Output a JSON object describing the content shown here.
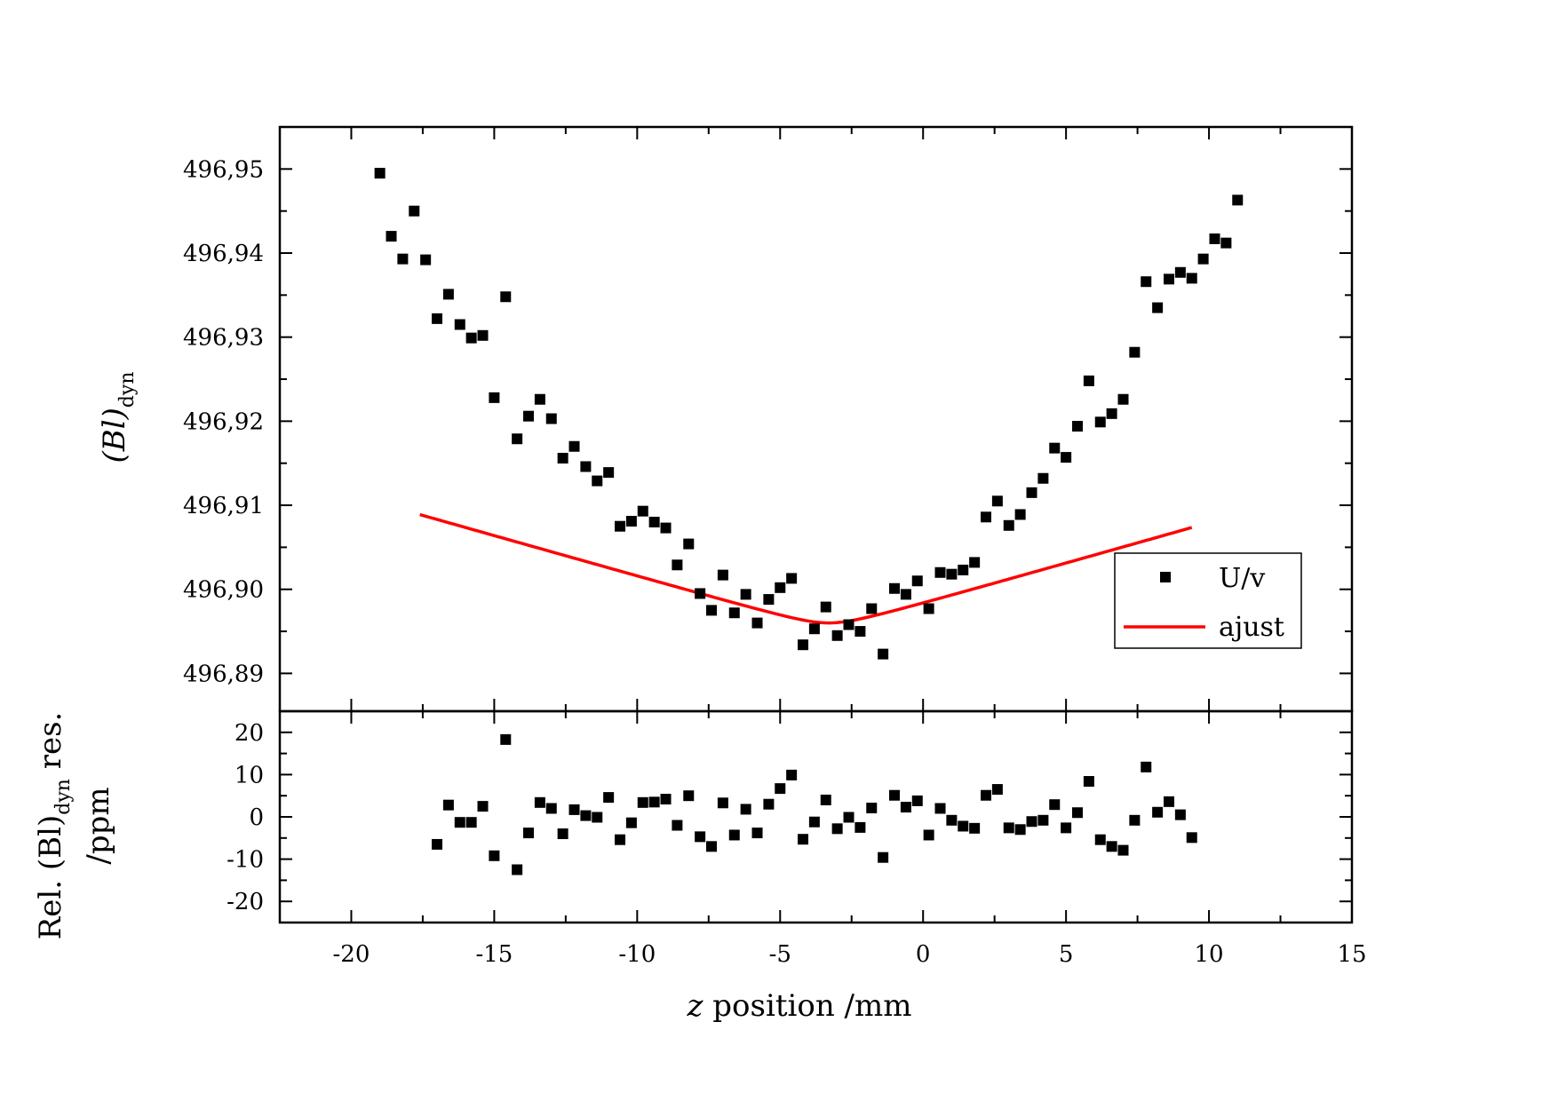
{
  "chart_data": [
    {
      "panel": "top",
      "type": "scatter",
      "ylim": [
        496.8855,
        496.955
      ],
      "xlim": [
        -22.5,
        15
      ],
      "yticks": [
        496.89,
        496.9,
        496.91,
        496.92,
        496.93,
        496.94,
        496.95
      ],
      "ytick_labels": [
        "496,89",
        "496,90",
        "496,91",
        "496,92",
        "496,93",
        "496,94",
        "496,95"
      ],
      "ylabel": {
        "main": "(Bl)",
        "sub": "dyn"
      },
      "legend": {
        "position": "lower-right",
        "entries": [
          {
            "label": "U/v",
            "kind": "marker"
          },
          {
            "label": "ajust",
            "kind": "line"
          }
        ]
      },
      "series": [
        {
          "name": "U/v",
          "kind": "scatter",
          "color": "#000000",
          "x": [
            -19.0,
            -18.6,
            -18.2,
            -17.8,
            -17.4,
            -17.0,
            -16.6,
            -16.2,
            -15.8,
            -15.4,
            -15.0,
            -14.6,
            -14.2,
            -13.8,
            -13.4,
            -13.0,
            -12.6,
            -12.2,
            -11.8,
            -11.4,
            -11.0,
            -10.6,
            -10.2,
            -9.8,
            -9.4,
            -9.0,
            -8.6,
            -8.2,
            -7.8,
            -7.4,
            -7.0,
            -6.6,
            -6.2,
            -5.8,
            -5.4,
            -5.0,
            -4.6,
            -4.2,
            -3.8,
            -3.4,
            -3.0,
            -2.6,
            -2.2,
            -1.8,
            -1.4,
            -1.0,
            -0.6,
            -0.2,
            0.2,
            0.6,
            1.0,
            1.4,
            1.8,
            2.2,
            2.6,
            3.0,
            3.4,
            3.8,
            4.2,
            4.6,
            5.0,
            5.4,
            5.8,
            6.2,
            6.6,
            7.0,
            7.4,
            7.8,
            8.2,
            8.6,
            9.0,
            9.4,
            9.8,
            10.2,
            10.6,
            11.0
          ],
          "y": [
            496.9495,
            496.942,
            496.9393,
            496.945,
            496.9392,
            496.9322,
            496.9351,
            496.9315,
            496.9299,
            496.9302,
            496.9228,
            496.9348,
            496.9179,
            496.9206,
            496.9226,
            496.9203,
            496.9156,
            496.917,
            496.9146,
            496.9129,
            496.9139,
            496.9075,
            496.9081,
            496.9093,
            496.908,
            496.9073,
            496.9029,
            496.9054,
            496.8995,
            496.8975,
            496.9017,
            496.8972,
            496.8994,
            496.896,
            496.8988,
            496.9002,
            496.9013,
            496.8934,
            496.8953,
            496.8979,
            496.8945,
            496.8958,
            496.895,
            496.8977,
            496.8923,
            496.9001,
            496.8994,
            496.901,
            496.8977,
            496.902,
            496.9018,
            496.9023,
            496.9032,
            496.9086,
            496.9105,
            496.9076,
            496.9089,
            496.9115,
            496.9132,
            496.9168,
            496.9157,
            496.9194,
            496.9248,
            496.9199,
            496.9209,
            496.9226,
            496.9282,
            496.9366,
            496.9335,
            496.9369,
            496.9377,
            496.937,
            496.9393,
            496.9417,
            496.9412,
            496.9463
          ]
        },
        {
          "name": "ajust",
          "kind": "line",
          "color": "#ff0000",
          "x_range": [
            -17.6,
            9.4
          ],
          "model": {
            "y0": 496.896,
            "x0": -3.3,
            "a": 0.000205,
            "c": 0.00092
          }
        }
      ]
    },
    {
      "panel": "bottom",
      "type": "scatter",
      "ylim": [
        -25,
        25
      ],
      "xlim": [
        -22.5,
        15
      ],
      "yticks": [
        -20,
        -10,
        0,
        10,
        20
      ],
      "xticks": [
        -20,
        -15,
        -10,
        -5,
        0,
        5,
        10,
        15
      ],
      "xlabel": {
        "italic": "z",
        "rest": " position /mm"
      },
      "ylabel": {
        "line1_pre": "Rel. (Bl)",
        "line1_sub": "dyn",
        "line1_post": " res.",
        "line2": "/ppm"
      },
      "series": [
        {
          "name": "residuals",
          "kind": "scatter",
          "color": "#000000",
          "x": [
            -17.0,
            -16.6,
            -16.2,
            -15.8,
            -15.4,
            -15.0,
            -14.6,
            -14.2,
            -13.8,
            -13.4,
            -13.0,
            -12.6,
            -12.2,
            -11.8,
            -11.4,
            -11.0,
            -10.6,
            -10.2,
            -9.8,
            -9.4,
            -9.0,
            -8.6,
            -8.2,
            -7.8,
            -7.4,
            -7.0,
            -6.6,
            -6.2,
            -5.8,
            -5.4,
            -5.0,
            -4.6,
            -4.2,
            -3.8,
            -3.4,
            -3.0,
            -2.6,
            -2.2,
            -1.8,
            -1.4,
            -1.0,
            -0.6,
            -0.2,
            0.2,
            0.6,
            1.0,
            1.4,
            1.8,
            2.2,
            2.6,
            3.0,
            3.4,
            3.8,
            4.2,
            4.6,
            5.0,
            5.4,
            5.8,
            6.2,
            6.6,
            7.0,
            7.4,
            7.8,
            8.2,
            8.6,
            9.0,
            9.4
          ],
          "y": [
            -6.5,
            2.8,
            -1.3,
            -1.3,
            2.5,
            -9.2,
            18.3,
            -12.5,
            -3.8,
            3.4,
            2.0,
            -4.0,
            1.7,
            0.3,
            -0.1,
            4.6,
            -5.4,
            -1.4,
            3.4,
            3.5,
            4.2,
            -2.0,
            5.0,
            -4.7,
            -7.0,
            3.3,
            -4.3,
            1.8,
            -3.8,
            3.0,
            6.7,
            9.9,
            -5.3,
            -1.2,
            4.0,
            -2.8,
            -0.1,
            -2.5,
            2.1,
            -9.6,
            5.1,
            2.3,
            3.8,
            -4.3,
            2.0,
            -0.8,
            -2.2,
            -2.7,
            5.1,
            6.5,
            -2.6,
            -3.0,
            -1.1,
            -0.8,
            2.9,
            -2.6,
            1.0,
            8.4,
            -5.4,
            -7.0,
            -7.9,
            -0.8,
            11.8,
            1.1,
            3.6,
            0.5,
            -4.9
          ]
        }
      ]
    }
  ]
}
